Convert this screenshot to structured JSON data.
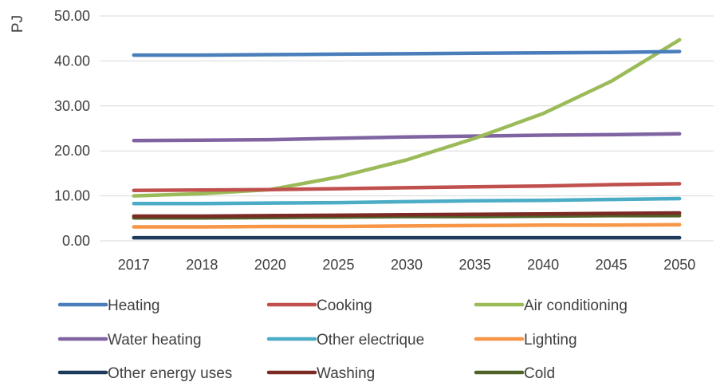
{
  "chart_data": {
    "type": "line",
    "ylabel": "PJ",
    "xlabel": "",
    "title": "",
    "ylim": [
      0,
      50
    ],
    "yticks": [
      "0.00",
      "10.00",
      "20.00",
      "30.00",
      "40.00",
      "50.00"
    ],
    "categories": [
      "2017",
      "2018",
      "2020",
      "2025",
      "2030",
      "2035",
      "2040",
      "2045",
      "2050"
    ],
    "grid": true,
    "legend_position": "bottom",
    "series": [
      {
        "name": "Heating",
        "color": "#4a7ebb",
        "values": [
          41.3,
          41.3,
          41.4,
          41.5,
          41.6,
          41.7,
          41.8,
          41.9,
          42.1
        ]
      },
      {
        "name": "Cooking",
        "color": "#c0504d",
        "values": [
          11.2,
          11.3,
          11.4,
          11.6,
          11.8,
          12.0,
          12.2,
          12.5,
          12.7
        ]
      },
      {
        "name": "Air conditioning",
        "color": "#9bbb59",
        "values": [
          10.0,
          10.5,
          11.4,
          14.2,
          18.0,
          22.8,
          28.3,
          35.5,
          44.7
        ]
      },
      {
        "name": "Water heating",
        "color": "#8064a2",
        "values": [
          22.3,
          22.4,
          22.5,
          22.8,
          23.1,
          23.3,
          23.5,
          23.6,
          23.8
        ]
      },
      {
        "name": "Other electrique",
        "color": "#4bacc6",
        "values": [
          8.3,
          8.3,
          8.4,
          8.5,
          8.7,
          8.9,
          9.0,
          9.2,
          9.4
        ]
      },
      {
        "name": "Lighting",
        "color": "#f79646",
        "values": [
          3.1,
          3.1,
          3.2,
          3.2,
          3.3,
          3.4,
          3.5,
          3.5,
          3.6
        ]
      },
      {
        "name": "Other energy uses",
        "color": "#1f3b5c",
        "values": [
          0.7,
          0.7,
          0.7,
          0.7,
          0.7,
          0.7,
          0.7,
          0.7,
          0.7
        ]
      },
      {
        "name": "Washing",
        "color": "#7b2a24",
        "values": [
          5.5,
          5.5,
          5.6,
          5.7,
          5.8,
          5.9,
          6.0,
          6.1,
          6.2
        ]
      },
      {
        "name": "Cold",
        "color": "#4f6228",
        "values": [
          5.1,
          5.1,
          5.2,
          5.3,
          5.4,
          5.4,
          5.5,
          5.6,
          5.6
        ]
      }
    ]
  }
}
